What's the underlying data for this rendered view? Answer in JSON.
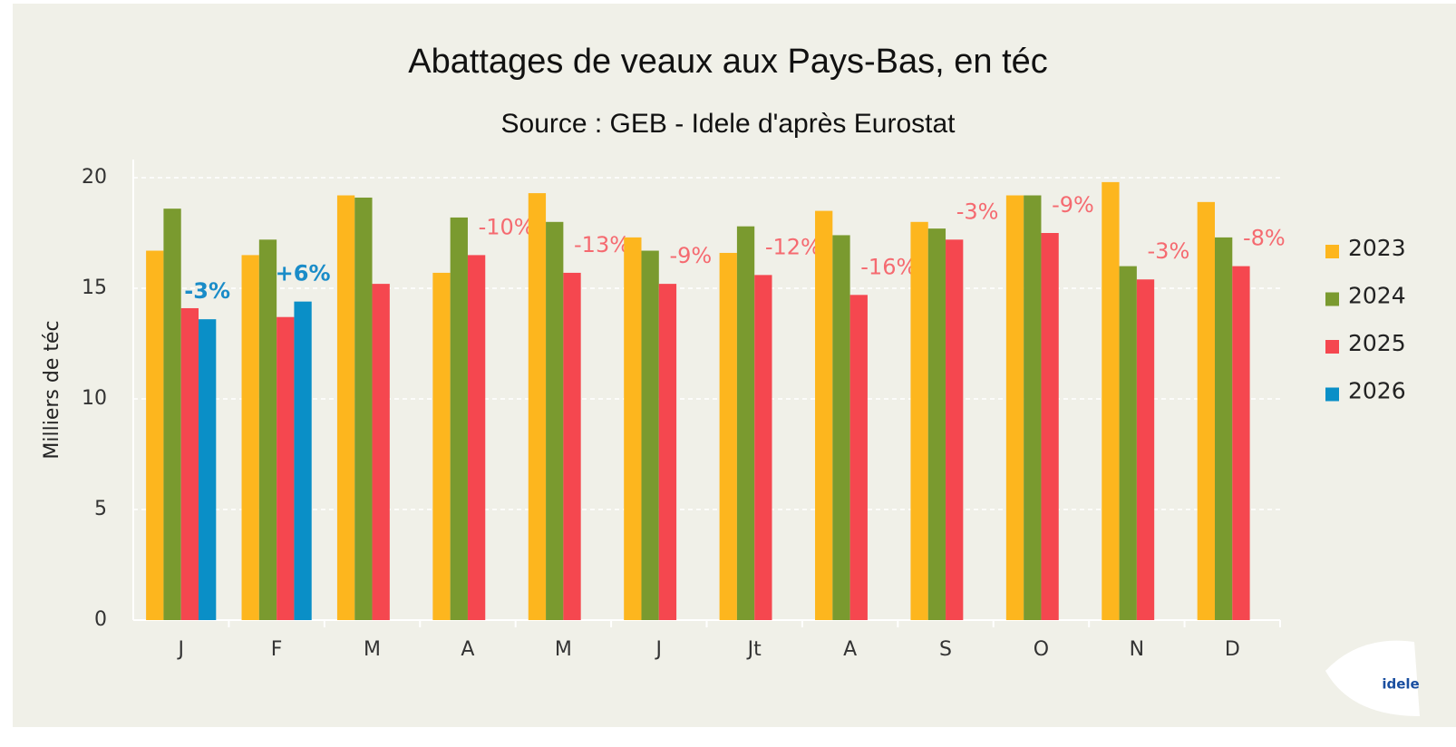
{
  "chart_data": {
    "type": "bar",
    "title": "Abattages de veaux aux Pays-Bas, en téc",
    "subtitle": "Source : GEB - Idele d'après Eurostat",
    "y_label": "Milliers de téc",
    "categories": [
      "J",
      "F",
      "M",
      "A",
      "M",
      "J",
      "Jt",
      "A",
      "S",
      "O",
      "N",
      "D"
    ],
    "series": [
      {
        "name": "2023",
        "color": "#fdb61e",
        "values": [
          16.7,
          16.5,
          19.2,
          15.7,
          19.3,
          17.3,
          16.6,
          18.5,
          18.0,
          19.2,
          19.8,
          18.9
        ]
      },
      {
        "name": "2024",
        "color": "#7a9a2f",
        "values": [
          18.6,
          17.2,
          19.1,
          18.2,
          18.0,
          16.7,
          17.8,
          17.4,
          17.7,
          19.2,
          16.0,
          17.3
        ]
      },
      {
        "name": "2025",
        "color": "#f5474f",
        "values": [
          14.1,
          13.7,
          15.2,
          16.5,
          15.7,
          15.2,
          15.6,
          14.7,
          17.2,
          17.5,
          15.4,
          16.0
        ],
        "annotations": [
          null,
          null,
          null,
          "-10%",
          "-13%",
          "-9%",
          "-12%",
          "-16%",
          "-3%",
          "-9%",
          "-3%",
          "-8%"
        ],
        "annotation_color": "#f56a70"
      },
      {
        "name": "2026",
        "color": "#0a8fc7",
        "values": [
          13.6,
          14.4,
          null,
          null,
          null,
          null,
          null,
          null,
          null,
          null,
          null,
          null
        ],
        "annotations": [
          "-3%",
          "+6%",
          null,
          null,
          null,
          null,
          null,
          null,
          null,
          null,
          null,
          null
        ],
        "annotation_color": "#1a8cc8"
      }
    ],
    "ylim": [
      0,
      20
    ],
    "yticks": [
      0,
      5,
      10,
      15,
      20
    ],
    "grid": true,
    "legend": "right",
    "logo": "idele"
  }
}
